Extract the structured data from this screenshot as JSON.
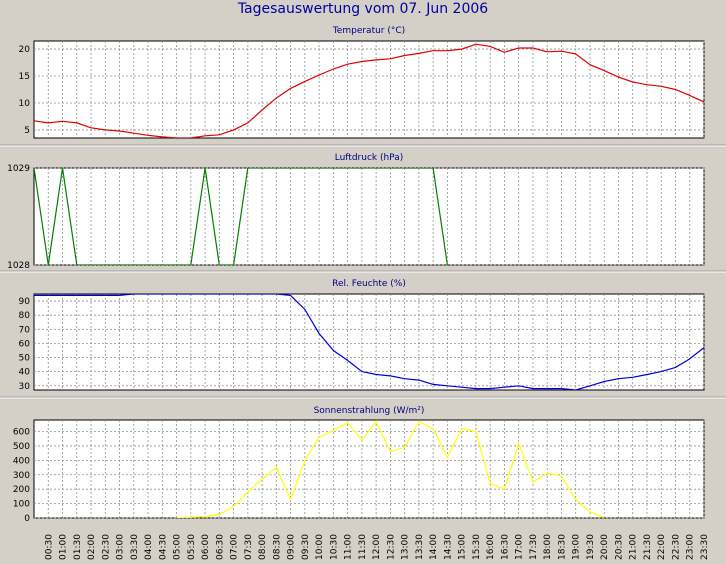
{
  "title": "Tagesauswertung vom 07. Jun 2006",
  "chart_data": [
    {
      "type": "line",
      "title": "Temperatur (°C)",
      "color": "#e00000",
      "ylim": [
        3.5,
        21.5
      ],
      "yticks": [
        5,
        10,
        15,
        20
      ],
      "x": [
        0,
        0.5,
        1,
        1.5,
        2,
        2.5,
        3,
        3.5,
        4,
        4.5,
        5,
        5.5,
        6,
        6.5,
        7,
        7.5,
        8,
        8.5,
        9,
        9.5,
        10,
        10.5,
        11,
        11.5,
        12,
        12.5,
        13,
        13.5,
        14,
        14.5,
        15,
        15.5,
        16,
        16.5,
        17,
        17.5,
        18,
        18.5,
        19,
        19.5,
        20,
        20.5,
        21,
        21.5,
        22,
        22.5,
        23,
        23.5
      ],
      "values": [
        6.7,
        6.3,
        6.6,
        6.3,
        5.4,
        5.0,
        4.8,
        4.4,
        4.0,
        3.7,
        3.5,
        3.5,
        3.9,
        4.1,
        5.0,
        6.3,
        8.7,
        10.9,
        12.7,
        14.0,
        15.2,
        16.3,
        17.2,
        17.7,
        18.0,
        18.2,
        18.8,
        19.2,
        19.7,
        19.7,
        20.0,
        20.9,
        20.5,
        19.4,
        20.2,
        20.2,
        19.5,
        19.6,
        19.1,
        17.1,
        16.0,
        14.8,
        13.9,
        13.4,
        13.1,
        12.5,
        11.4,
        10.2
      ]
    },
    {
      "type": "line",
      "title": "Luftdruck (hPa)",
      "color": "#008000",
      "ylim": [
        1028,
        1029
      ],
      "yticks": [
        1028,
        1029
      ],
      "x": [
        0,
        0.5,
        1,
        1.5,
        2,
        2.5,
        3,
        3.5,
        4,
        4.5,
        5,
        5.5,
        6,
        6.5,
        7,
        7.5,
        8,
        8.5,
        9,
        9.5,
        10,
        10.5,
        11,
        11.5,
        12,
        12.5,
        13,
        13.5,
        14,
        14.5
      ],
      "values": [
        1029,
        1028,
        1029,
        1028,
        1028,
        1028,
        1028,
        1028,
        1028,
        1028,
        1028,
        1028,
        1029,
        1028,
        1028,
        1029,
        1029,
        1029,
        1029,
        1029,
        1029,
        1029,
        1029,
        1029,
        1029,
        1029,
        1029,
        1029,
        1029,
        1028
      ]
    },
    {
      "type": "line",
      "title": "Rel. Feuchte (%)",
      "color": "#0000e0",
      "ylim": [
        27,
        95
      ],
      "yticks": [
        30,
        40,
        50,
        60,
        70,
        80,
        90
      ],
      "x": [
        0,
        0.5,
        1,
        1.5,
        2,
        2.5,
        3,
        3.5,
        4,
        4.5,
        5,
        5.5,
        6,
        6.5,
        7,
        7.5,
        8,
        8.5,
        9,
        9.5,
        10,
        10.5,
        11,
        11.5,
        12,
        12.5,
        13,
        13.5,
        14,
        14.5,
        15,
        15.5,
        16,
        16.5,
        17,
        17.5,
        18,
        18.5,
        19,
        19.5,
        20,
        20.5,
        21,
        21.5,
        22,
        22.5,
        23,
        23.5
      ],
      "values": [
        94,
        94,
        94,
        94,
        94,
        94,
        94,
        95,
        95,
        95,
        95,
        95,
        95,
        95,
        95,
        95,
        95,
        95,
        94,
        84,
        67,
        55,
        48,
        40,
        38,
        37,
        35,
        34,
        31,
        30,
        29,
        28,
        28,
        29,
        30,
        28,
        28,
        28,
        27,
        30,
        33,
        35,
        36,
        38,
        40,
        43,
        49,
        57
      ]
    },
    {
      "type": "line",
      "title": "Sonnenstrahlung (W/m²)",
      "color": "#ffff00",
      "ylim": [
        0,
        680
      ],
      "yticks": [
        0,
        100,
        200,
        300,
        400,
        500,
        600
      ],
      "x": [
        5,
        5.5,
        6,
        6.5,
        7,
        7.5,
        8,
        8.5,
        9,
        9.5,
        10,
        10.5,
        11,
        11.5,
        12,
        12.5,
        13,
        13.5,
        14,
        14.5,
        15,
        15.5,
        16,
        16.5,
        17,
        17.5,
        18,
        18.5,
        19,
        19.5,
        20
      ],
      "values": [
        0,
        5,
        10,
        25,
        80,
        180,
        270,
        350,
        130,
        400,
        560,
        610,
        660,
        540,
        670,
        460,
        490,
        670,
        620,
        420,
        620,
        600,
        240,
        200,
        520,
        250,
        310,
        290,
        130,
        40,
        5
      ]
    }
  ],
  "x_categories": [
    "00:30",
    "01:00",
    "01:30",
    "02:00",
    "02:30",
    "03:00",
    "03:30",
    "04:00",
    "04:30",
    "05:00",
    "05:30",
    "06:00",
    "06:30",
    "07:00",
    "07:30",
    "08:00",
    "08:30",
    "09:00",
    "09:30",
    "10:00",
    "10:30",
    "11:00",
    "11:30",
    "12:00",
    "12:30",
    "13:00",
    "13:30",
    "14:00",
    "14:30",
    "15:00",
    "15:30",
    "16:00",
    "16:30",
    "17:00",
    "17:30",
    "18:00",
    "18:30",
    "19:00",
    "19:30",
    "20:00",
    "20:30",
    "21:00",
    "21:30",
    "22:00",
    "22:30",
    "23:00",
    "23:30"
  ]
}
